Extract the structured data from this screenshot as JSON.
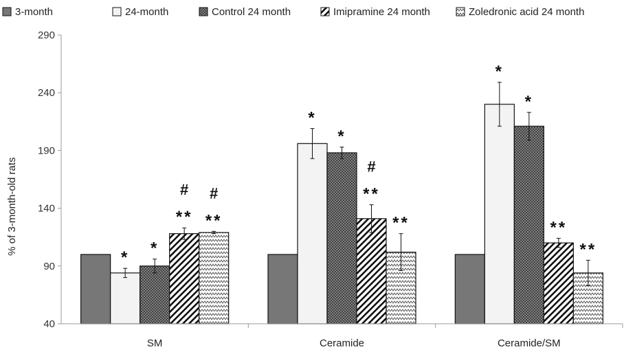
{
  "chart_data": {
    "type": "bar",
    "title": "",
    "xlabel": "",
    "ylabel": "% of 3-month-old rats",
    "ylim": [
      40,
      290
    ],
    "yticks": [
      40,
      90,
      140,
      190,
      240,
      290
    ],
    "grid": false,
    "legend_position": "top",
    "categories": [
      "SM",
      "Ceramide",
      "Ceramide/SM"
    ],
    "series": [
      {
        "name": "3-month",
        "values": [
          100,
          100,
          100
        ],
        "errors": [
          0,
          0,
          0
        ],
        "annotations": [
          "",
          "",
          ""
        ],
        "pattern": "solid",
        "color": "#777777"
      },
      {
        "name": "24-month",
        "values": [
          84,
          196,
          230
        ],
        "errors": [
          4,
          13,
          19
        ],
        "annotations": [
          "*",
          "*",
          "*"
        ],
        "pattern": "light",
        "color": "#f0f0f0"
      },
      {
        "name": "Control 24 month",
        "values": [
          90,
          188,
          211
        ],
        "errors": [
          6,
          5,
          12
        ],
        "annotations": [
          "*",
          "*",
          "*"
        ],
        "pattern": "crosshatch",
        "color": "#6e6e6e"
      },
      {
        "name": "Imipramine 24 month",
        "values": [
          118,
          131,
          110
        ],
        "errors": [
          5,
          12,
          4
        ],
        "annotations": [
          "# **",
          "# **",
          "**"
        ],
        "pattern": "diagonal",
        "color": "#222222"
      },
      {
        "name": "Zoledronic acid 24 month",
        "values": [
          119,
          102,
          84
        ],
        "errors": [
          1,
          16,
          11
        ],
        "annotations": [
          "# **",
          "**",
          "**"
        ],
        "pattern": "zigzag",
        "color": "#555555"
      }
    ]
  }
}
